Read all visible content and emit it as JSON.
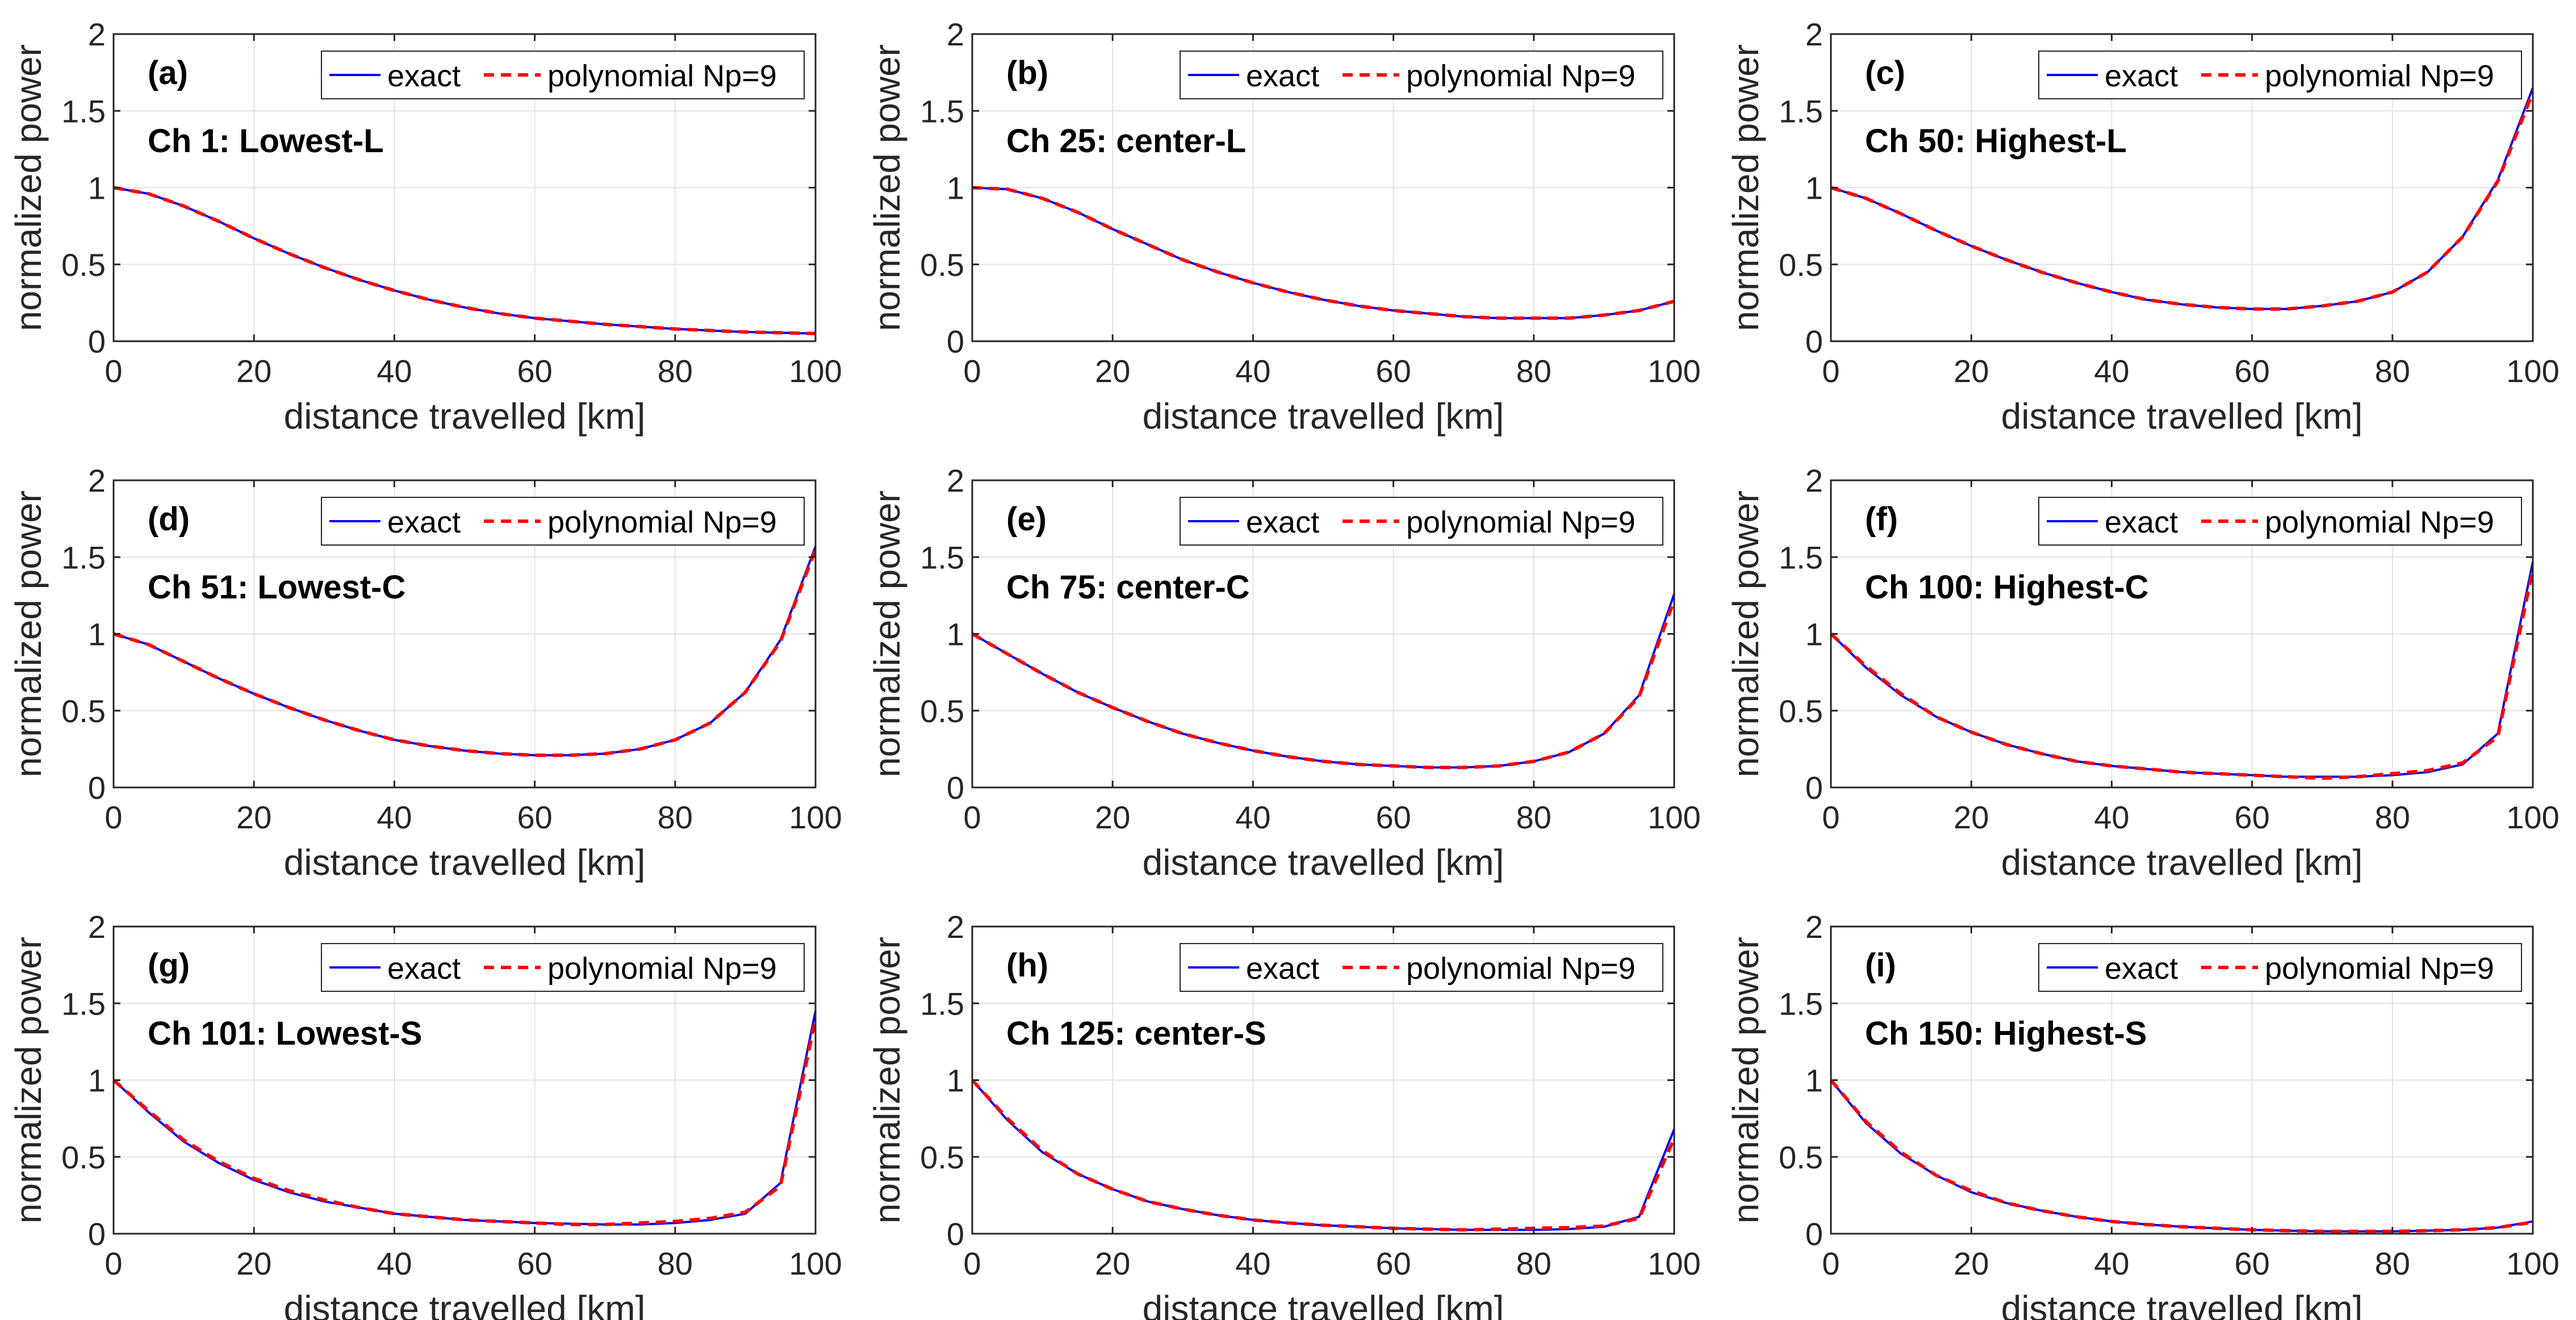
{
  "chart_data": [
    {
      "type": "line",
      "panel_label": "(a)",
      "subtitle": "Ch 1: Lowest-L",
      "xlabel": "distance travelled [km]",
      "ylabel": "normalized power",
      "xlim": [
        0,
        100
      ],
      "ylim": [
        0,
        2
      ],
      "xticks": [
        0,
        20,
        40,
        60,
        80,
        100
      ],
      "xtick_labels": [
        "0",
        "20",
        "40",
        "60",
        "80",
        "100"
      ],
      "yticks": [
        0,
        0.5,
        1,
        1.5,
        2
      ],
      "ytick_labels": [
        "0",
        "0.5",
        "1",
        "1.5",
        "2"
      ],
      "grid": true,
      "legend_position": "top-right",
      "legend": [
        "exact",
        "polynomial Np=9"
      ],
      "x": [
        0,
        5,
        10,
        15,
        20,
        25,
        30,
        35,
        40,
        45,
        50,
        55,
        60,
        65,
        70,
        75,
        80,
        85,
        90,
        95,
        100
      ],
      "series": [
        {
          "name": "exact",
          "color": "#0000ff",
          "style": "solid",
          "values": [
            1.0,
            0.96,
            0.88,
            0.78,
            0.67,
            0.57,
            0.48,
            0.4,
            0.33,
            0.27,
            0.22,
            0.18,
            0.15,
            0.13,
            0.11,
            0.095,
            0.08,
            0.07,
            0.06,
            0.055,
            0.05
          ]
        },
        {
          "name": "polynomial Np=9",
          "color": "#ff0000",
          "style": "dashed",
          "values": [
            1.0,
            0.96,
            0.88,
            0.78,
            0.67,
            0.57,
            0.48,
            0.4,
            0.33,
            0.27,
            0.22,
            0.18,
            0.15,
            0.13,
            0.11,
            0.095,
            0.08,
            0.07,
            0.06,
            0.055,
            0.05
          ]
        }
      ]
    },
    {
      "type": "line",
      "panel_label": "(b)",
      "subtitle": "Ch 25: center-L",
      "xlabel": "distance travelled [km]",
      "ylabel": "normalized power",
      "xlim": [
        0,
        100
      ],
      "ylim": [
        0,
        2
      ],
      "xticks": [
        0,
        20,
        40,
        60,
        80,
        100
      ],
      "xtick_labels": [
        "0",
        "20",
        "40",
        "60",
        "80",
        "100"
      ],
      "yticks": [
        0,
        0.5,
        1,
        1.5,
        2
      ],
      "ytick_labels": [
        "0",
        "0.5",
        "1",
        "1.5",
        "2"
      ],
      "grid": true,
      "legend_position": "top-right",
      "legend": [
        "exact",
        "polynomial Np=9"
      ],
      "x": [
        0,
        5,
        10,
        15,
        20,
        25,
        30,
        35,
        40,
        45,
        50,
        55,
        60,
        65,
        70,
        75,
        80,
        85,
        90,
        95,
        100
      ],
      "series": [
        {
          "name": "exact",
          "color": "#0000ff",
          "style": "solid",
          "values": [
            1.0,
            0.99,
            0.93,
            0.84,
            0.73,
            0.63,
            0.53,
            0.45,
            0.38,
            0.32,
            0.27,
            0.23,
            0.2,
            0.18,
            0.16,
            0.15,
            0.15,
            0.15,
            0.17,
            0.2,
            0.26
          ]
        },
        {
          "name": "polynomial Np=9",
          "color": "#ff0000",
          "style": "dashed",
          "values": [
            1.0,
            0.99,
            0.93,
            0.84,
            0.73,
            0.63,
            0.53,
            0.45,
            0.38,
            0.32,
            0.27,
            0.23,
            0.2,
            0.18,
            0.16,
            0.15,
            0.15,
            0.15,
            0.17,
            0.2,
            0.26
          ]
        }
      ]
    },
    {
      "type": "line",
      "panel_label": "(c)",
      "subtitle": "Ch 50: Highest-L",
      "xlabel": "distance travelled [km]",
      "ylabel": "normalized power",
      "xlim": [
        0,
        100
      ],
      "ylim": [
        0,
        2
      ],
      "xticks": [
        0,
        20,
        40,
        60,
        80,
        100
      ],
      "xtick_labels": [
        "0",
        "20",
        "40",
        "60",
        "80",
        "100"
      ],
      "yticks": [
        0,
        0.5,
        1,
        1.5,
        2
      ],
      "ytick_labels": [
        "0",
        "0.5",
        "1",
        "1.5",
        "2"
      ],
      "grid": true,
      "legend_position": "top-right",
      "legend": [
        "exact",
        "polynomial Np=9"
      ],
      "x": [
        0,
        5,
        10,
        15,
        20,
        25,
        30,
        35,
        40,
        45,
        50,
        55,
        60,
        65,
        70,
        75,
        80,
        85,
        90,
        95,
        100
      ],
      "series": [
        {
          "name": "exact",
          "color": "#0000ff",
          "style": "solid",
          "values": [
            1.0,
            0.93,
            0.83,
            0.72,
            0.62,
            0.53,
            0.45,
            0.38,
            0.32,
            0.27,
            0.24,
            0.22,
            0.21,
            0.21,
            0.23,
            0.26,
            0.32,
            0.45,
            0.68,
            1.05,
            1.65
          ]
        },
        {
          "name": "polynomial Np=9",
          "color": "#ff0000",
          "style": "dashed",
          "values": [
            1.0,
            0.93,
            0.83,
            0.72,
            0.62,
            0.53,
            0.45,
            0.38,
            0.32,
            0.27,
            0.24,
            0.22,
            0.21,
            0.21,
            0.23,
            0.26,
            0.32,
            0.45,
            0.68,
            1.04,
            1.62
          ]
        }
      ]
    },
    {
      "type": "line",
      "panel_label": "(d)",
      "subtitle": "Ch 51: Lowest-C",
      "xlabel": "distance travelled [km]",
      "ylabel": "normalized power",
      "xlim": [
        0,
        100
      ],
      "ylim": [
        0,
        2
      ],
      "xticks": [
        0,
        20,
        40,
        60,
        80,
        100
      ],
      "xtick_labels": [
        "0",
        "20",
        "40",
        "60",
        "80",
        "100"
      ],
      "yticks": [
        0,
        0.5,
        1,
        1.5,
        2
      ],
      "ytick_labels": [
        "0",
        "0.5",
        "1",
        "1.5",
        "2"
      ],
      "grid": true,
      "legend_position": "top-right",
      "legend": [
        "exact",
        "polynomial Np=9"
      ],
      "x": [
        0,
        5,
        10,
        15,
        20,
        25,
        30,
        35,
        40,
        45,
        50,
        55,
        60,
        65,
        70,
        75,
        80,
        85,
        90,
        95,
        100
      ],
      "series": [
        {
          "name": "exact",
          "color": "#0000ff",
          "style": "solid",
          "values": [
            1.0,
            0.93,
            0.82,
            0.71,
            0.61,
            0.52,
            0.44,
            0.37,
            0.31,
            0.27,
            0.24,
            0.22,
            0.21,
            0.21,
            0.22,
            0.25,
            0.31,
            0.42,
            0.62,
            0.96,
            1.57
          ]
        },
        {
          "name": "polynomial Np=9",
          "color": "#ff0000",
          "style": "dashed",
          "values": [
            1.0,
            0.93,
            0.82,
            0.71,
            0.61,
            0.52,
            0.44,
            0.37,
            0.31,
            0.27,
            0.24,
            0.22,
            0.21,
            0.21,
            0.22,
            0.25,
            0.31,
            0.42,
            0.62,
            0.95,
            1.55
          ]
        }
      ]
    },
    {
      "type": "line",
      "panel_label": "(e)",
      "subtitle": "Ch 75: center-C",
      "xlabel": "distance travelled [km]",
      "ylabel": "normalized power",
      "xlim": [
        0,
        100
      ],
      "ylim": [
        0,
        2
      ],
      "xticks": [
        0,
        20,
        40,
        60,
        80,
        100
      ],
      "xtick_labels": [
        "0",
        "20",
        "40",
        "60",
        "80",
        "100"
      ],
      "yticks": [
        0,
        0.5,
        1,
        1.5,
        2
      ],
      "ytick_labels": [
        "0",
        "0.5",
        "1",
        "1.5",
        "2"
      ],
      "grid": true,
      "legend_position": "top-right",
      "legend": [
        "exact",
        "polynomial Np=9"
      ],
      "x": [
        0,
        5,
        10,
        15,
        20,
        25,
        30,
        35,
        40,
        45,
        50,
        55,
        60,
        65,
        70,
        75,
        80,
        85,
        90,
        95,
        100
      ],
      "series": [
        {
          "name": "exact",
          "color": "#0000ff",
          "style": "solid",
          "values": [
            1.0,
            0.87,
            0.74,
            0.62,
            0.52,
            0.43,
            0.35,
            0.29,
            0.24,
            0.2,
            0.17,
            0.15,
            0.14,
            0.13,
            0.13,
            0.14,
            0.17,
            0.23,
            0.35,
            0.6,
            1.26
          ]
        },
        {
          "name": "polynomial Np=9",
          "color": "#ff0000",
          "style": "dashed",
          "values": [
            1.0,
            0.87,
            0.74,
            0.62,
            0.52,
            0.43,
            0.35,
            0.29,
            0.24,
            0.2,
            0.17,
            0.15,
            0.14,
            0.13,
            0.13,
            0.14,
            0.17,
            0.23,
            0.35,
            0.59,
            1.22
          ]
        }
      ]
    },
    {
      "type": "line",
      "panel_label": "(f)",
      "subtitle": "Ch 100: Highest-C",
      "xlabel": "distance travelled [km]",
      "ylabel": "normalized power",
      "xlim": [
        0,
        100
      ],
      "ylim": [
        0,
        2
      ],
      "xticks": [
        0,
        20,
        40,
        60,
        80,
        100
      ],
      "xtick_labels": [
        "0",
        "20",
        "40",
        "60",
        "80",
        "100"
      ],
      "yticks": [
        0,
        0.5,
        1,
        1.5,
        2
      ],
      "ytick_labels": [
        "0",
        "0.5",
        "1",
        "1.5",
        "2"
      ],
      "grid": true,
      "legend_position": "top-right",
      "legend": [
        "exact",
        "polynomial Np=9"
      ],
      "x": [
        0,
        5,
        10,
        15,
        20,
        25,
        30,
        35,
        40,
        45,
        50,
        55,
        60,
        65,
        70,
        75,
        80,
        85,
        90,
        95,
        100
      ],
      "series": [
        {
          "name": "exact",
          "color": "#0000ff",
          "style": "solid",
          "values": [
            1.0,
            0.78,
            0.6,
            0.46,
            0.36,
            0.28,
            0.22,
            0.17,
            0.14,
            0.12,
            0.1,
            0.09,
            0.08,
            0.07,
            0.07,
            0.07,
            0.08,
            0.1,
            0.15,
            0.35,
            1.47
          ]
        },
        {
          "name": "polynomial Np=9",
          "color": "#ff0000",
          "style": "dashed",
          "values": [
            1.0,
            0.79,
            0.61,
            0.46,
            0.36,
            0.28,
            0.22,
            0.17,
            0.14,
            0.12,
            0.1,
            0.09,
            0.08,
            0.07,
            0.06,
            0.07,
            0.09,
            0.11,
            0.16,
            0.33,
            1.42
          ]
        }
      ]
    },
    {
      "type": "line",
      "panel_label": "(g)",
      "subtitle": "Ch 101: Lowest-S",
      "xlabel": "distance travelled [km]",
      "ylabel": "normalized power",
      "xlim": [
        0,
        100
      ],
      "ylim": [
        0,
        2
      ],
      "xticks": [
        0,
        20,
        40,
        60,
        80,
        100
      ],
      "xtick_labels": [
        "0",
        "20",
        "40",
        "60",
        "80",
        "100"
      ],
      "yticks": [
        0,
        0.5,
        1,
        1.5,
        2
      ],
      "ytick_labels": [
        "0",
        "0.5",
        "1",
        "1.5",
        "2"
      ],
      "grid": true,
      "legend_position": "top-right",
      "legend": [
        "exact",
        "polynomial Np=9"
      ],
      "x": [
        0,
        5,
        10,
        15,
        20,
        25,
        30,
        35,
        40,
        45,
        50,
        55,
        60,
        65,
        70,
        75,
        80,
        85,
        90,
        95,
        100
      ],
      "series": [
        {
          "name": "exact",
          "color": "#0000ff",
          "style": "solid",
          "values": [
            1.0,
            0.79,
            0.6,
            0.46,
            0.35,
            0.27,
            0.21,
            0.17,
            0.13,
            0.11,
            0.09,
            0.08,
            0.07,
            0.065,
            0.06,
            0.06,
            0.07,
            0.09,
            0.13,
            0.33,
            1.45
          ]
        },
        {
          "name": "polynomial Np=9",
          "color": "#ff0000",
          "style": "dashed",
          "values": [
            1.0,
            0.8,
            0.61,
            0.47,
            0.36,
            0.28,
            0.22,
            0.17,
            0.13,
            0.11,
            0.09,
            0.08,
            0.07,
            0.06,
            0.06,
            0.07,
            0.08,
            0.1,
            0.14,
            0.31,
            1.4
          ]
        }
      ]
    },
    {
      "type": "line",
      "panel_label": "(h)",
      "subtitle": "Ch 125: center-S",
      "xlabel": "distance travelled [km]",
      "ylabel": "normalized power",
      "xlim": [
        0,
        100
      ],
      "ylim": [
        0,
        2
      ],
      "xticks": [
        0,
        20,
        40,
        60,
        80,
        100
      ],
      "xtick_labels": [
        "0",
        "20",
        "40",
        "60",
        "80",
        "100"
      ],
      "yticks": [
        0,
        0.5,
        1,
        1.5,
        2
      ],
      "ytick_labels": [
        "0",
        "0.5",
        "1",
        "1.5",
        "2"
      ],
      "grid": true,
      "legend_position": "top-right",
      "legend": [
        "exact",
        "polynomial Np=9"
      ],
      "x": [
        0,
        5,
        10,
        15,
        20,
        25,
        30,
        35,
        40,
        45,
        50,
        55,
        60,
        65,
        70,
        75,
        80,
        85,
        90,
        95,
        100
      ],
      "series": [
        {
          "name": "exact",
          "color": "#0000ff",
          "style": "solid",
          "values": [
            1.0,
            0.74,
            0.53,
            0.39,
            0.29,
            0.21,
            0.16,
            0.12,
            0.09,
            0.07,
            0.055,
            0.045,
            0.035,
            0.03,
            0.025,
            0.025,
            0.025,
            0.03,
            0.045,
            0.11,
            0.68
          ]
        },
        {
          "name": "polynomial Np=9",
          "color": "#ff0000",
          "style": "dashed",
          "values": [
            1.0,
            0.75,
            0.54,
            0.39,
            0.29,
            0.21,
            0.16,
            0.12,
            0.09,
            0.07,
            0.055,
            0.045,
            0.035,
            0.03,
            0.025,
            0.03,
            0.035,
            0.04,
            0.05,
            0.1,
            0.62
          ]
        }
      ]
    },
    {
      "type": "line",
      "panel_label": "(i)",
      "subtitle": "Ch 150: Highest-S",
      "xlabel": "distance travelled [km]",
      "ylabel": "normalized power",
      "xlim": [
        0,
        100
      ],
      "ylim": [
        0,
        2
      ],
      "xticks": [
        0,
        20,
        40,
        60,
        80,
        100
      ],
      "xtick_labels": [
        "0",
        "20",
        "40",
        "60",
        "80",
        "100"
      ],
      "yticks": [
        0,
        0.5,
        1,
        1.5,
        2
      ],
      "ytick_labels": [
        "0",
        "0.5",
        "1",
        "1.5",
        "2"
      ],
      "grid": true,
      "legend_position": "top-right",
      "legend": [
        "exact",
        "polynomial Np=9"
      ],
      "x": [
        0,
        5,
        10,
        15,
        20,
        25,
        30,
        35,
        40,
        45,
        50,
        55,
        60,
        65,
        70,
        75,
        80,
        85,
        90,
        95,
        100
      ],
      "series": [
        {
          "name": "exact",
          "color": "#0000ff",
          "style": "solid",
          "values": [
            1.0,
            0.72,
            0.52,
            0.38,
            0.27,
            0.2,
            0.15,
            0.11,
            0.08,
            0.06,
            0.045,
            0.035,
            0.025,
            0.02,
            0.015,
            0.015,
            0.015,
            0.02,
            0.025,
            0.04,
            0.08
          ]
        },
        {
          "name": "polynomial Np=9",
          "color": "#ff0000",
          "style": "dashed",
          "values": [
            1.0,
            0.73,
            0.53,
            0.38,
            0.28,
            0.2,
            0.15,
            0.11,
            0.08,
            0.06,
            0.045,
            0.035,
            0.025,
            0.02,
            0.015,
            0.015,
            0.015,
            0.02,
            0.025,
            0.04,
            0.075
          ]
        }
      ]
    }
  ]
}
